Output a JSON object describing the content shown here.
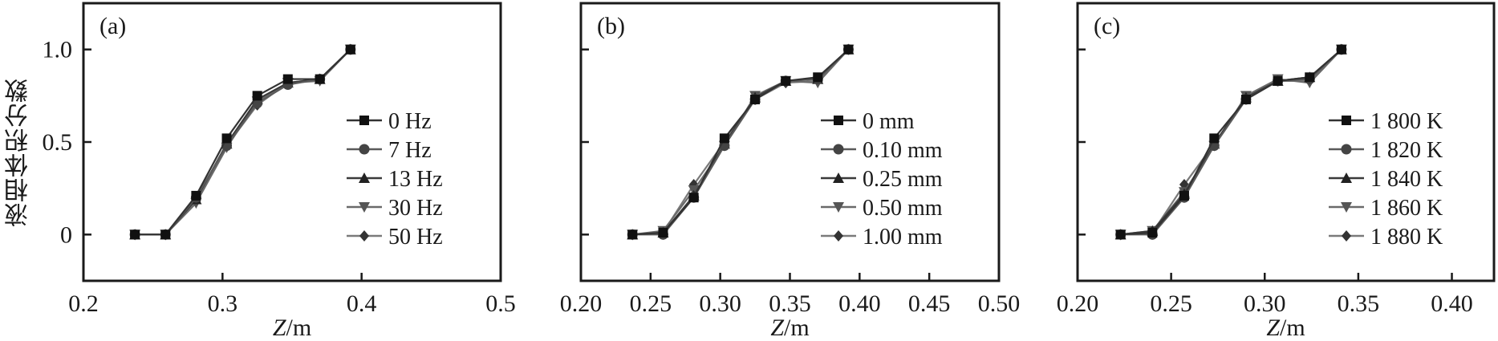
{
  "chart_data": [
    {
      "type": "line",
      "panel_label": "(a)",
      "xlabel_italic": "Z",
      "xlabel_rest": "/m",
      "ylabel": "液相体积分数",
      "xlim": [
        0.2,
        0.5
      ],
      "ylim": [
        -0.25,
        1.25
      ],
      "xticks": [
        0.2,
        0.3,
        0.4,
        0.5
      ],
      "xtick_labels": [
        "0.2",
        "0.3",
        "0.4",
        "0.5"
      ],
      "yticks": [
        0,
        0.5,
        1.0
      ],
      "ytick_labels": [
        "0",
        "0.5",
        "1.0"
      ],
      "legend_position": "center-right",
      "x": [
        0.237,
        0.259,
        0.281,
        0.303,
        0.325,
        0.347,
        0.37,
        0.392
      ],
      "series": [
        {
          "name": "0 Hz",
          "marker": "square",
          "values": [
            0,
            0,
            0.21,
            0.52,
            0.75,
            0.84,
            0.84,
            1.0
          ]
        },
        {
          "name": "7 Hz",
          "marker": "circle",
          "values": [
            0,
            0,
            0.2,
            0.48,
            0.71,
            0.81,
            0.84,
            1.0
          ]
        },
        {
          "name": "13 Hz",
          "marker": "triangle-up",
          "values": [
            0,
            0,
            0.19,
            0.49,
            0.73,
            0.82,
            0.84,
            1.0
          ]
        },
        {
          "name": "30 Hz",
          "marker": "triangle-down",
          "values": [
            0,
            0,
            0.17,
            0.47,
            0.72,
            0.82,
            0.83,
            1.0
          ]
        },
        {
          "name": "50 Hz",
          "marker": "diamond",
          "values": [
            0,
            0,
            0.18,
            0.48,
            0.7,
            0.82,
            0.84,
            1.0
          ]
        }
      ]
    },
    {
      "type": "line",
      "panel_label": "(b)",
      "xlabel_italic": "Z",
      "xlabel_rest": "/m",
      "xlim": [
        0.2,
        0.5
      ],
      "ylim": [
        -0.25,
        1.25
      ],
      "xticks": [
        0.2,
        0.25,
        0.3,
        0.35,
        0.4,
        0.45,
        0.5
      ],
      "xtick_labels": [
        "0.20",
        "0.25",
        "0.30",
        "0.35",
        "0.40",
        "0.45",
        "0.50"
      ],
      "yticks": [
        0,
        0.5,
        1.0
      ],
      "ytick_labels": [],
      "legend_position": "center-right",
      "x": [
        0.237,
        0.259,
        0.281,
        0.303,
        0.325,
        0.347,
        0.37,
        0.392
      ],
      "series": [
        {
          "name": "0 mm",
          "marker": "square",
          "values": [
            0,
            0.01,
            0.2,
            0.52,
            0.73,
            0.83,
            0.85,
            1.0
          ]
        },
        {
          "name": "0.10 mm",
          "marker": "circle",
          "values": [
            0,
            0.0,
            0.2,
            0.48,
            0.73,
            0.83,
            0.84,
            1.0
          ]
        },
        {
          "name": "0.25 mm",
          "marker": "triangle-up",
          "values": [
            0,
            0.01,
            0.21,
            0.49,
            0.74,
            0.83,
            0.84,
            1.0
          ]
        },
        {
          "name": "0.50 mm",
          "marker": "triangle-down",
          "values": [
            0,
            0.02,
            0.24,
            0.48,
            0.75,
            0.83,
            0.82,
            1.0
          ]
        },
        {
          "name": "1.00 mm",
          "marker": "diamond",
          "values": [
            0,
            0.01,
            0.27,
            0.5,
            0.73,
            0.82,
            0.83,
            1.0
          ]
        }
      ]
    },
    {
      "type": "line",
      "panel_label": "(c)",
      "xlabel_italic": "Z",
      "xlabel_rest": "/m",
      "xlim": [
        0.2,
        0.4225
      ],
      "ylim": [
        -0.25,
        1.25
      ],
      "xticks": [
        0.2,
        0.25,
        0.3,
        0.35,
        0.4
      ],
      "xtick_labels": [
        "0.20",
        "0.25",
        "0.30",
        "0.35",
        "0.40"
      ],
      "yticks": [
        0,
        0.5,
        1.0
      ],
      "ytick_labels": [],
      "legend_position": "center-right",
      "x": [
        0.223,
        0.24,
        0.257,
        0.273,
        0.29,
        0.307,
        0.324,
        0.341
      ],
      "series": [
        {
          "name": "1 800 K",
          "marker": "square",
          "values": [
            0,
            0.01,
            0.21,
            0.52,
            0.73,
            0.83,
            0.85,
            1.0
          ]
        },
        {
          "name": "1 820 K",
          "marker": "circle",
          "values": [
            0,
            0,
            0.2,
            0.48,
            0.73,
            0.83,
            0.84,
            1.0
          ]
        },
        {
          "name": "1 840 K",
          "marker": "triangle-up",
          "values": [
            0,
            0.02,
            0.22,
            0.49,
            0.74,
            0.83,
            0.85,
            1.0
          ]
        },
        {
          "name": "1 860 K",
          "marker": "triangle-down",
          "values": [
            0,
            0.02,
            0.23,
            0.48,
            0.75,
            0.84,
            0.82,
            1.0
          ]
        },
        {
          "name": "1 880 K",
          "marker": "diamond",
          "values": [
            0,
            0.01,
            0.27,
            0.49,
            0.74,
            0.83,
            0.83,
            1.0
          ]
        }
      ]
    }
  ],
  "colors": {
    "axis": "#1a1a1a",
    "series_markers": [
      "#111111",
      "#444444",
      "#222222",
      "#555555",
      "#333333"
    ],
    "series_lines": [
      "#333333",
      "#5a5a5a",
      "#3a3a3a",
      "#6a6a6a",
      "#7a7a7a"
    ]
  }
}
